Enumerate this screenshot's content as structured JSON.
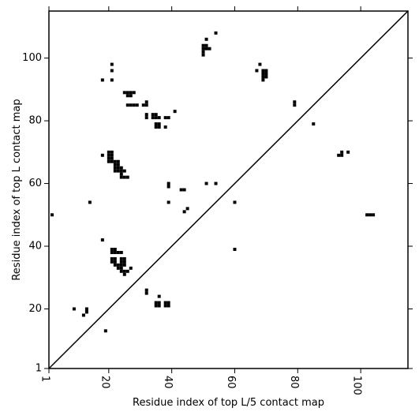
{
  "chart_data": {
    "type": "scatter",
    "title": "",
    "xlabel": "Residue index of top L/5 contact map",
    "ylabel": "Residue index of top L contact map",
    "xlim": [
      1,
      115
    ],
    "ylim": [
      1,
      115
    ],
    "xticks": [
      1,
      20,
      40,
      60,
      80,
      100
    ],
    "yticks": [
      1,
      20,
      40,
      60,
      80,
      100
    ],
    "xtick_labels": [
      "1",
      "20",
      "40",
      "60",
      "80",
      "100"
    ],
    "ytick_labels": [
      "1",
      "20",
      "40",
      "60",
      "80",
      "100"
    ],
    "marker_color": "#000000",
    "diagonal": true,
    "grid": false,
    "points": [
      [
        2,
        50
      ],
      [
        9,
        20
      ],
      [
        12,
        18
      ],
      [
        13,
        20
      ],
      [
        13,
        19
      ],
      [
        14,
        54
      ],
      [
        18,
        93
      ],
      [
        18,
        69
      ],
      [
        18,
        42
      ],
      [
        19,
        13
      ],
      [
        21,
        98
      ],
      [
        21,
        96
      ],
      [
        21,
        93
      ],
      [
        20,
        70
      ],
      [
        21,
        70
      ],
      [
        20,
        69
      ],
      [
        21,
        69
      ],
      [
        20,
        68
      ],
      [
        21,
        68
      ],
      [
        20,
        67
      ],
      [
        21,
        67
      ],
      [
        22,
        67
      ],
      [
        23,
        67
      ],
      [
        22,
        66
      ],
      [
        23,
        66
      ],
      [
        22,
        65
      ],
      [
        23,
        65
      ],
      [
        24,
        65
      ],
      [
        22,
        64
      ],
      [
        23,
        64
      ],
      [
        24,
        64
      ],
      [
        25,
        64
      ],
      [
        24,
        63
      ],
      [
        24,
        62
      ],
      [
        25,
        62
      ],
      [
        26,
        62
      ],
      [
        25,
        89
      ],
      [
        26,
        89
      ],
      [
        27,
        89
      ],
      [
        28,
        89
      ],
      [
        26,
        88
      ],
      [
        27,
        88
      ],
      [
        26,
        85
      ],
      [
        27,
        85
      ],
      [
        28,
        85
      ],
      [
        29,
        85
      ],
      [
        31,
        85
      ],
      [
        32,
        85
      ],
      [
        32,
        86
      ],
      [
        32,
        82
      ],
      [
        32,
        81
      ],
      [
        34,
        82
      ],
      [
        35,
        82
      ],
      [
        34,
        81
      ],
      [
        35,
        81
      ],
      [
        36,
        81
      ],
      [
        35,
        79
      ],
      [
        36,
        79
      ],
      [
        35,
        78
      ],
      [
        36,
        78
      ],
      [
        38,
        81
      ],
      [
        39,
        81
      ],
      [
        38,
        78
      ],
      [
        41,
        83
      ],
      [
        21,
        39
      ],
      [
        22,
        39
      ],
      [
        21,
        38
      ],
      [
        22,
        38
      ],
      [
        23,
        38
      ],
      [
        24,
        38
      ],
      [
        21,
        36
      ],
      [
        22,
        36
      ],
      [
        24,
        36
      ],
      [
        25,
        36
      ],
      [
        21,
        35
      ],
      [
        22,
        35
      ],
      [
        24,
        35
      ],
      [
        25,
        35
      ],
      [
        22,
        34
      ],
      [
        23,
        34
      ],
      [
        24,
        34
      ],
      [
        25,
        34
      ],
      [
        23,
        33
      ],
      [
        24,
        33
      ],
      [
        24,
        32
      ],
      [
        25,
        32
      ],
      [
        26,
        32
      ],
      [
        25,
        31
      ],
      [
        27,
        33
      ],
      [
        32,
        26
      ],
      [
        32,
        25
      ],
      [
        36,
        24
      ],
      [
        35,
        22
      ],
      [
        36,
        22
      ],
      [
        38,
        22
      ],
      [
        39,
        22
      ],
      [
        35,
        21
      ],
      [
        36,
        21
      ],
      [
        38,
        21
      ],
      [
        39,
        21
      ],
      [
        39,
        60
      ],
      [
        39,
        59
      ],
      [
        39,
        54
      ],
      [
        43,
        58
      ],
      [
        44,
        58
      ],
      [
        44,
        51
      ],
      [
        45,
        52
      ],
      [
        51,
        60
      ],
      [
        54,
        60
      ],
      [
        50,
        104
      ],
      [
        51,
        104
      ],
      [
        50,
        103
      ],
      [
        51,
        103
      ],
      [
        52,
        103
      ],
      [
        50,
        102
      ],
      [
        50,
        101
      ],
      [
        51,
        106
      ],
      [
        54,
        108
      ],
      [
        60,
        54
      ],
      [
        60,
        39
      ],
      [
        67,
        96
      ],
      [
        68,
        98
      ],
      [
        69,
        96
      ],
      [
        70,
        96
      ],
      [
        69,
        95
      ],
      [
        70,
        95
      ],
      [
        69,
        94
      ],
      [
        70,
        94
      ],
      [
        69,
        93
      ],
      [
        79,
        86
      ],
      [
        79,
        85
      ],
      [
        85,
        79
      ],
      [
        93,
        69
      ],
      [
        94,
        69
      ],
      [
        94,
        70
      ],
      [
        96,
        70
      ],
      [
        102,
        50
      ],
      [
        103,
        50
      ],
      [
        104,
        50
      ]
    ]
  }
}
